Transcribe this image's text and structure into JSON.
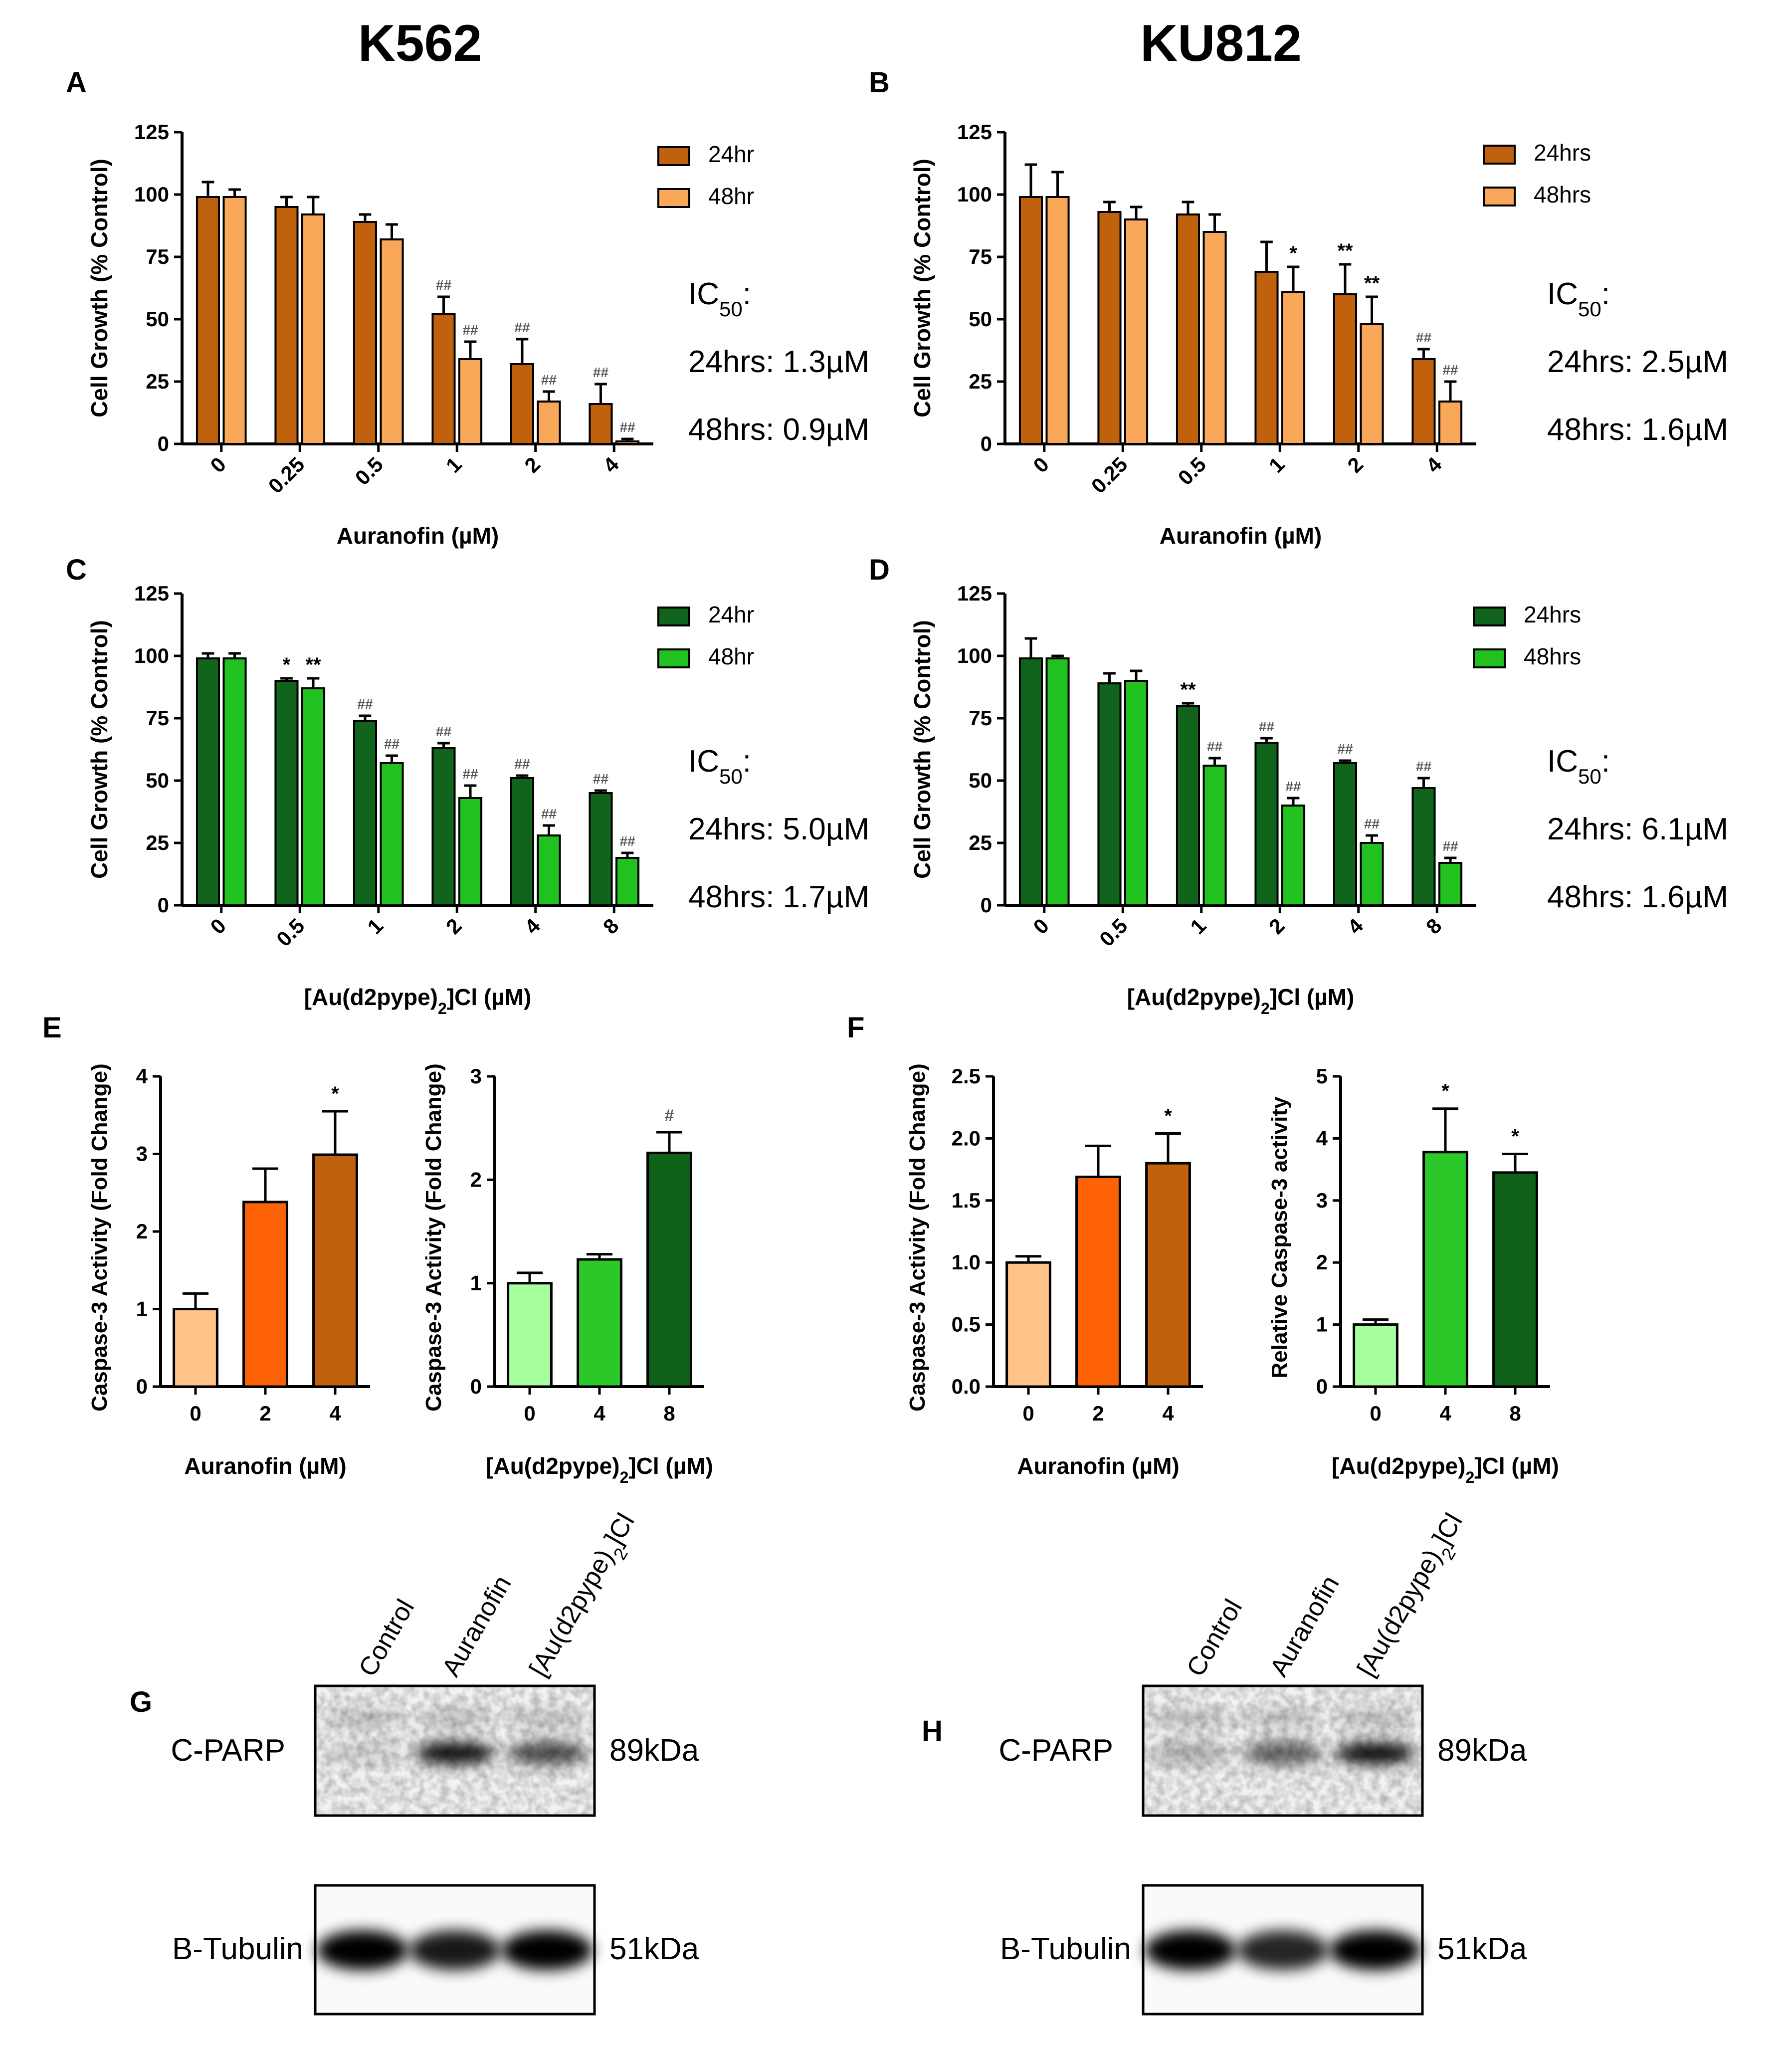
{
  "headers": {
    "left": "K562",
    "right": "KU812"
  },
  "panel_letters": {
    "A": "A",
    "B": "B",
    "C": "C",
    "D": "D",
    "E": "E",
    "F": "F",
    "G": "G",
    "H": "H"
  },
  "colors": {
    "au_24": "#C0610D",
    "au_48": "#F9A85A",
    "d2_24": "#11641B",
    "d2_48": "#21C21F",
    "e_au": [
      "#FFC287",
      "#FE6206",
      "#C0610D"
    ],
    "e_d2": [
      "#A8FF9F",
      "#2CC82A",
      "#10621A"
    ]
  },
  "chart_data": [
    {
      "id": "A",
      "type": "bar",
      "ylabel": "Cell Growth (% Control)",
      "xlabel": "Auranofin (µM)",
      "ylim": [
        0,
        125
      ],
      "yticks": [
        "0",
        "25",
        "50",
        "75",
        "100",
        "125"
      ],
      "ytick_values": [
        0,
        25,
        50,
        75,
        100,
        125
      ],
      "categories": [
        "0",
        "0.25",
        "0.5",
        "1",
        "2",
        "4"
      ],
      "series": [
        {
          "name": "24hr",
          "values": [
            99,
            95,
            89,
            52,
            32,
            16
          ],
          "errors": [
            6,
            4,
            3,
            7,
            10,
            8
          ],
          "marks": [
            "",
            "",
            "",
            "##",
            "##",
            "##"
          ]
        },
        {
          "name": "48hr",
          "values": [
            99,
            92,
            82,
            34,
            17,
            1
          ],
          "errors": [
            3,
            7,
            6,
            7,
            4,
            1
          ],
          "marks": [
            "",
            "",
            "",
            "##",
            "##",
            "##"
          ]
        }
      ],
      "legend": [
        "24hr",
        "48hr"
      ],
      "ic50": {
        "label": "IC",
        "sub": "50",
        "colon": ":",
        "line24": "24hrs: 1.3µM",
        "line48": "48hrs: 0.9µM"
      }
    },
    {
      "id": "B",
      "type": "bar",
      "ylabel": "Cell Growth (% Control)",
      "xlabel": "Auranofin (µM)",
      "ylim": [
        0,
        125
      ],
      "yticks": [
        "0",
        "25",
        "50",
        "75",
        "100",
        "125"
      ],
      "ytick_values": [
        0,
        25,
        50,
        75,
        100,
        125
      ],
      "categories": [
        "0",
        "0.25",
        "0.5",
        "1",
        "2",
        "4"
      ],
      "series": [
        {
          "name": "24hrs",
          "values": [
            99,
            93,
            92,
            69,
            60,
            34
          ],
          "errors": [
            13,
            4,
            5,
            12,
            12,
            4
          ],
          "marks": [
            "",
            "",
            "",
            "",
            "**",
            "##"
          ]
        },
        {
          "name": "48hrs",
          "values": [
            99,
            90,
            85,
            61,
            48,
            17
          ],
          "errors": [
            10,
            5,
            7,
            10,
            11,
            8
          ],
          "marks": [
            "",
            "",
            "",
            "*",
            "**",
            "##"
          ]
        }
      ],
      "legend": [
        "24hrs",
        "48hrs"
      ],
      "ic50": {
        "label": "IC",
        "sub": "50",
        "colon": ":",
        "line24": "24hrs: 2.5µM",
        "line48": "48hrs: 1.6µM"
      }
    },
    {
      "id": "C",
      "type": "bar",
      "ylabel": "Cell Growth (% Control)",
      "xlabel": "[Au(d2pype)",
      "xlabel_sub": "2",
      "xlabel_tail": "]Cl (µM)",
      "ylim": [
        0,
        125
      ],
      "yticks": [
        "0",
        "25",
        "50",
        "75",
        "100",
        "125"
      ],
      "ytick_values": [
        0,
        25,
        50,
        75,
        100,
        125
      ],
      "categories": [
        "0",
        "0.5",
        "1",
        "2",
        "4",
        "8"
      ],
      "series": [
        {
          "name": "24hr",
          "values": [
            99,
            90,
            74,
            63,
            51,
            45
          ],
          "errors": [
            2,
            1,
            2,
            2,
            1,
            1
          ],
          "marks": [
            "",
            "*",
            "##",
            "##",
            "##",
            "##"
          ]
        },
        {
          "name": "48hr",
          "values": [
            99,
            87,
            57,
            43,
            28,
            19
          ],
          "errors": [
            2,
            4,
            3,
            5,
            4,
            2
          ],
          "marks": [
            "",
            "**",
            "##",
            "##",
            "##",
            "##"
          ]
        }
      ],
      "legend": [
        "24hr",
        "48hr"
      ],
      "ic50": {
        "label": "IC",
        "sub": "50",
        "colon": ":",
        "line24": "24hrs: 5.0µM",
        "line48": "48hrs: 1.7µM"
      }
    },
    {
      "id": "D",
      "type": "bar",
      "ylabel": "Cell Growth (% Control)",
      "xlabel": "[Au(d2pype)",
      "xlabel_sub": "2",
      "xlabel_tail": "]Cl (µM)",
      "ylim": [
        0,
        125
      ],
      "yticks": [
        "0",
        "25",
        "50",
        "75",
        "100",
        "125"
      ],
      "ytick_values": [
        0,
        25,
        50,
        75,
        100,
        125
      ],
      "categories": [
        "0",
        "0.5",
        "1",
        "2",
        "4",
        "8"
      ],
      "series": [
        {
          "name": "24hrs",
          "values": [
            99,
            89,
            80,
            65,
            57,
            47
          ],
          "errors": [
            8,
            4,
            1,
            2,
            1,
            4
          ],
          "marks": [
            "",
            "",
            "**",
            "##",
            "##",
            "##"
          ]
        },
        {
          "name": "48hrs",
          "values": [
            99,
            90,
            56,
            40,
            25,
            17
          ],
          "errors": [
            1,
            4,
            3,
            3,
            3,
            2
          ],
          "marks": [
            "",
            "",
            "##",
            "##",
            "##",
            "##"
          ]
        }
      ],
      "legend": [
        "24hrs",
        "48hrs"
      ],
      "ic50": {
        "label": "IC",
        "sub": "50",
        "colon": ":",
        "line24": "24hrs: 6.1µM",
        "line48": "48hrs: 1.6µM"
      }
    },
    {
      "id": "E1",
      "type": "bar",
      "ylabel": "Caspase-3 Activity (Fold Change)",
      "xlabel": "Auranofin (µM)",
      "ylim": [
        0,
        4
      ],
      "yticks": [
        "0",
        "1",
        "2",
        "3",
        "4"
      ],
      "ytick_values": [
        0,
        1,
        2,
        3,
        4
      ],
      "categories": [
        "0",
        "2",
        "4"
      ],
      "values": [
        1.0,
        2.38,
        2.99
      ],
      "errors": [
        0.2,
        0.43,
        0.56
      ],
      "marks": [
        "",
        "",
        "*"
      ]
    },
    {
      "id": "E2",
      "type": "bar",
      "ylabel": "Caspase-3 Activity (Fold Change)",
      "xlabel": "[Au(d2pype)",
      "xlabel_sub": "2",
      "xlabel_tail": "]Cl (µM)",
      "ylim": [
        0,
        3
      ],
      "yticks": [
        "0",
        "1",
        "2",
        "3"
      ],
      "ytick_values": [
        0,
        1,
        2,
        3
      ],
      "categories": [
        "0",
        "4",
        "8"
      ],
      "values": [
        1.0,
        1.23,
        2.26
      ],
      "errors": [
        0.1,
        0.05,
        0.2
      ],
      "marks": [
        "",
        "",
        "#"
      ]
    },
    {
      "id": "F1",
      "type": "bar",
      "ylabel": "Caspase-3 Activity (Fold Change)",
      "xlabel": "Auranofin (µM)",
      "ylim": [
        0,
        2.5
      ],
      "yticks": [
        "0.0",
        "0.5",
        "1.0",
        "1.5",
        "2.0",
        "2.5"
      ],
      "ytick_values": [
        0,
        0.5,
        1.0,
        1.5,
        2.0,
        2.5
      ],
      "categories": [
        "0",
        "2",
        "4"
      ],
      "values": [
        1.0,
        1.69,
        1.8
      ],
      "errors": [
        0.05,
        0.25,
        0.24
      ],
      "marks": [
        "",
        "",
        "*"
      ]
    },
    {
      "id": "F2",
      "type": "bar",
      "ylabel": "Relative Caspase-3 activity",
      "xlabel": "[Au(d2pype)",
      "xlabel_sub": "2",
      "xlabel_tail": "]Cl (µM)",
      "ylim": [
        0,
        5
      ],
      "yticks": [
        "0",
        "1",
        "2",
        "3",
        "4",
        "5"
      ],
      "ytick_values": [
        0,
        1,
        2,
        3,
        4,
        5
      ],
      "categories": [
        "0",
        "4",
        "8"
      ],
      "values": [
        1.0,
        3.78,
        3.45
      ],
      "errors": [
        0.08,
        0.7,
        0.3
      ],
      "marks": [
        "",
        "*",
        "*"
      ]
    }
  ],
  "blots": {
    "lanes": [
      "Control",
      "Auranofin",
      "[Au(d2pype)",
      "2",
      "]Cl"
    ],
    "cparp": "C-PARP",
    "tubulin": "B-Tubulin",
    "kda89": "89kDa",
    "kda51": "51kDa",
    "G_cparp_intensity": [
      0.12,
      0.95,
      0.7
    ],
    "H_cparp_intensity": [
      0.25,
      0.6,
      0.95
    ],
    "G_tubulin_intensity": [
      1.0,
      0.9,
      1.0
    ],
    "H_tubulin_intensity": [
      1.0,
      0.85,
      1.0
    ]
  }
}
